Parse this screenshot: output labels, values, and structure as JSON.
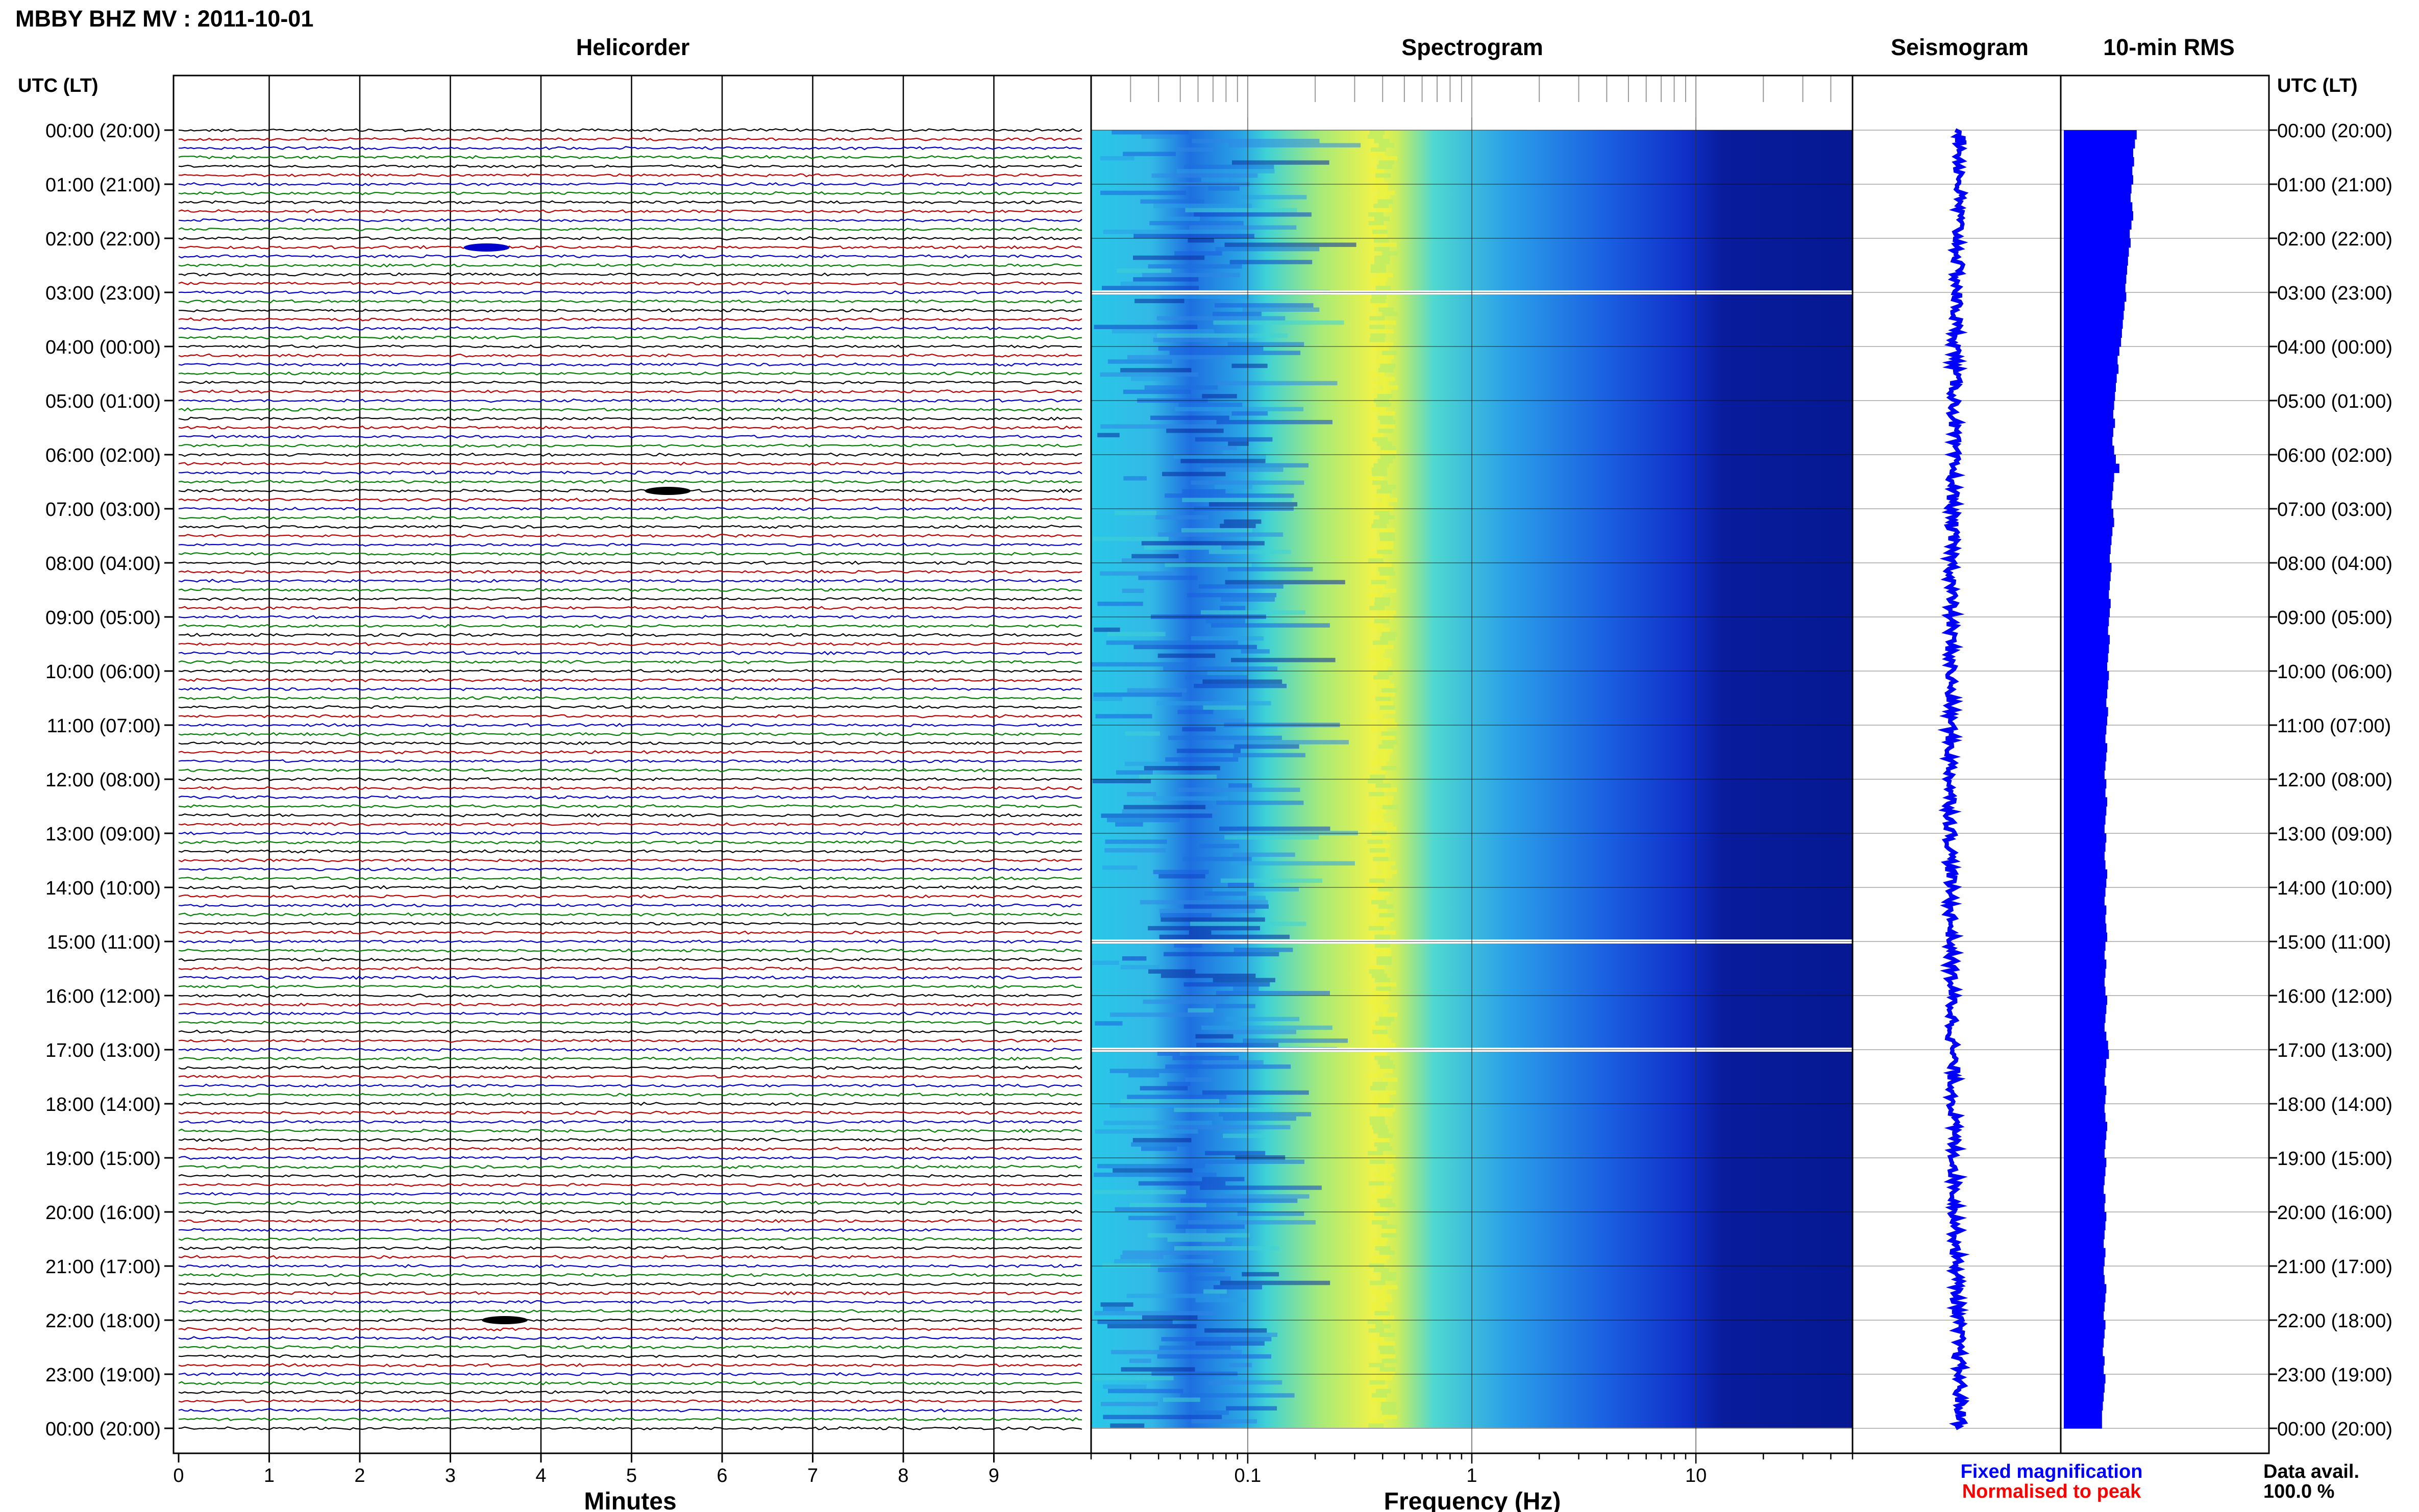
{
  "chart_data": {
    "type": "heatmap",
    "title": "MBBY BHZ MV : 2011-10-01",
    "panels": [
      "Helicorder",
      "Spectrogram",
      "Seismogram",
      "10-min RMS"
    ],
    "row_axis": {
      "label": "UTC (LT)",
      "labels": [
        "00:00 (20:00)",
        "01:00 (21:00)",
        "02:00 (22:00)",
        "03:00 (23:00)",
        "04:00 (00:00)",
        "05:00 (01:00)",
        "06:00 (02:00)",
        "07:00 (03:00)",
        "08:00 (04:00)",
        "09:00 (05:00)",
        "10:00 (06:00)",
        "11:00 (07:00)",
        "12:00 (08:00)",
        "13:00 (09:00)",
        "14:00 (10:00)",
        "15:00 (11:00)",
        "16:00 (12:00)",
        "17:00 (13:00)",
        "18:00 (14:00)",
        "19:00 (15:00)",
        "20:00 (16:00)",
        "21:00 (17:00)",
        "22:00 (18:00)",
        "23:00 (19:00)",
        "00:00 (20:00)"
      ]
    },
    "helicorder": {
      "xlabel": "Minutes",
      "ticks": [
        "0",
        "1",
        "2",
        "3",
        "4",
        "5",
        "6",
        "7",
        "8",
        "9"
      ],
      "xlim": [
        0,
        10
      ],
      "lines_per_hour": 6,
      "trace_colors": [
        "#000000",
        "#c00000",
        "#0000cc",
        "#008000"
      ],
      "events": [
        {
          "hour": 2.17,
          "minute": 3.4,
          "color": "#0000cc"
        },
        {
          "hour": 6.67,
          "minute": 5.4,
          "color": "#000000"
        },
        {
          "hour": 22.0,
          "minute": 3.6,
          "color": "#000000"
        }
      ]
    },
    "spectrogram": {
      "xlabel": "Frequency (Hz)",
      "ticks": [
        "0.1",
        "1",
        "10"
      ],
      "xlim": [
        0.02,
        50
      ],
      "scale": "log",
      "peak_frequency_hz": 0.4,
      "gaps_hour": [
        3.0,
        15.0,
        17.0
      ]
    },
    "seismogram": {
      "color": "#0000ff"
    },
    "rms": {
      "color": "#0000ff",
      "values": [
        0.84,
        0.82,
        0.8,
        0.81,
        0.79,
        0.8,
        0.78,
        0.77,
        0.79,
        0.8,
        0.78,
        0.76,
        0.77,
        0.75,
        0.74,
        0.73,
        0.72,
        0.71,
        0.72,
        0.7,
        0.69,
        0.68,
        0.67,
        0.66,
        0.64,
        0.62,
        0.63,
        0.61,
        0.6,
        0.59,
        0.58,
        0.57,
        0.59,
        0.57,
        0.56,
        0.58,
        0.6,
        0.64,
        0.58,
        0.57,
        0.56,
        0.55,
        0.57,
        0.58,
        0.56,
        0.55,
        0.54,
        0.53,
        0.55,
        0.54,
        0.53,
        0.52,
        0.54,
        0.53,
        0.52,
        0.51,
        0.53,
        0.52,
        0.51,
        0.5,
        0.52,
        0.51,
        0.5,
        0.49,
        0.51,
        0.5,
        0.49,
        0.48,
        0.5,
        0.49,
        0.48,
        0.47,
        0.49,
        0.48,
        0.5,
        0.49,
        0.48,
        0.47,
        0.49,
        0.48,
        0.47,
        0.48,
        0.5,
        0.49,
        0.48,
        0.47,
        0.49,
        0.48,
        0.49,
        0.5,
        0.48,
        0.47,
        0.49,
        0.48,
        0.47,
        0.48,
        0.5,
        0.49,
        0.48,
        0.47,
        0.49,
        0.51,
        0.52,
        0.49,
        0.48,
        0.47,
        0.49,
        0.48,
        0.47,
        0.48,
        0.5,
        0.49,
        0.48,
        0.47,
        0.49,
        0.48,
        0.47,
        0.46,
        0.48,
        0.47,
        0.49,
        0.48,
        0.47,
        0.46,
        0.48,
        0.47,
        0.46,
        0.47,
        0.49,
        0.48,
        0.47,
        0.46,
        0.48,
        0.47,
        0.46,
        0.45,
        0.47,
        0.46,
        0.48,
        0.47,
        0.46,
        0.45,
        0.44,
        0.44
      ]
    },
    "legend": {
      "fixed": "Fixed magnification",
      "normalised": "Normalised to peak",
      "fixed_color": "#0000ff",
      "normalised_color": "#ff0000"
    },
    "availability": {
      "label": "Data avail.",
      "value": "100.0 %"
    }
  }
}
